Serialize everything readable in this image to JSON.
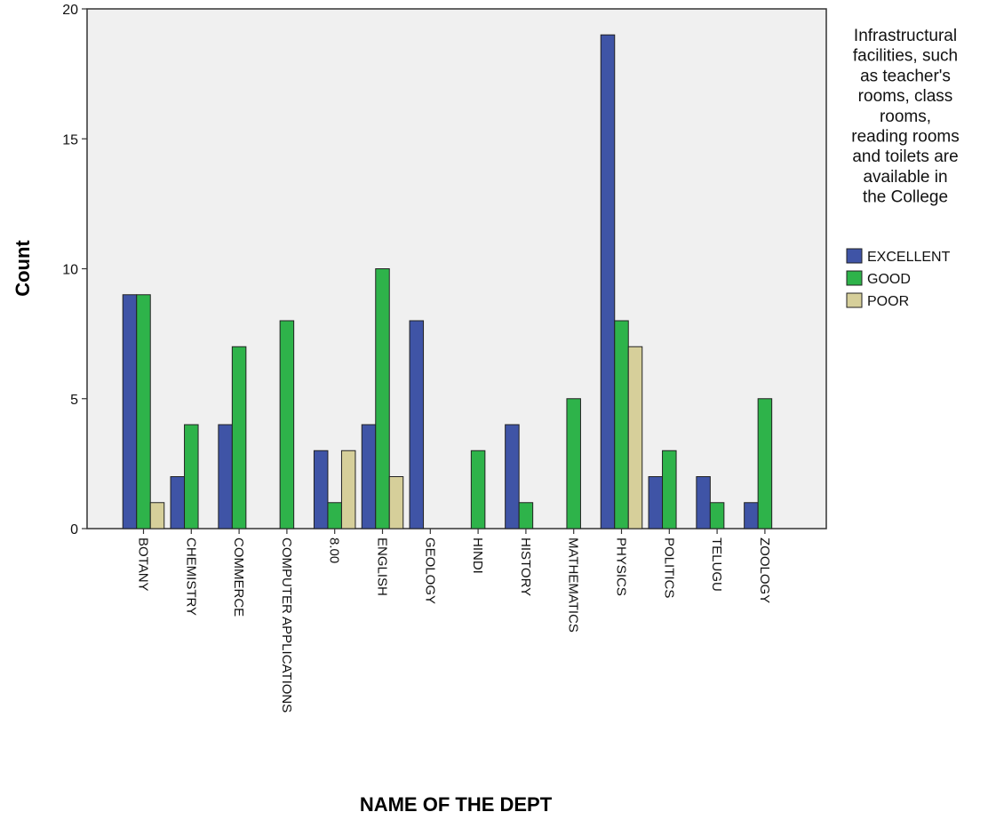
{
  "chart_data": {
    "type": "bar",
    "xlabel": "NAME OF THE DEPT",
    "ylabel": "Count",
    "ylim": [
      0,
      20
    ],
    "yticks": [
      0,
      5,
      10,
      15,
      20
    ],
    "grid": false,
    "legend_placement": "right",
    "categories": [
      "BOTANY",
      "CHEMISTRY",
      "COMMERCE",
      "COMPUTER APPLICATIONS",
      "8.00",
      "ENGLISH",
      "GEOLOGY",
      "HINDI",
      "HISTORY",
      "MATHEMATICS",
      "PHYSICS",
      "POLITICS",
      "TELUGU",
      "ZOOLOGY"
    ],
    "legend_title_lines": [
      "Infrastructural",
      "facilities, such",
      "as teacher's",
      "rooms, class",
      "rooms,",
      "reading rooms",
      "and toilets are",
      "available in",
      "the College"
    ],
    "series": [
      {
        "name": "EXCELLENT",
        "color": "#3F54A6",
        "values": [
          9,
          2,
          4,
          null,
          3,
          4,
          8,
          null,
          4,
          null,
          19,
          2,
          2,
          1
        ]
      },
      {
        "name": "GOOD",
        "color": "#2EB34A",
        "values": [
          9,
          4,
          7,
          8,
          1,
          10,
          null,
          3,
          1,
          5,
          8,
          3,
          1,
          5
        ]
      },
      {
        "name": "POOR",
        "color": "#D6CF9A",
        "values": [
          1,
          null,
          null,
          null,
          3,
          2,
          null,
          null,
          null,
          null,
          7,
          null,
          null,
          null
        ]
      }
    ]
  },
  "colors": {
    "plot_background": "#F0F0F0",
    "axis": "#333333"
  }
}
